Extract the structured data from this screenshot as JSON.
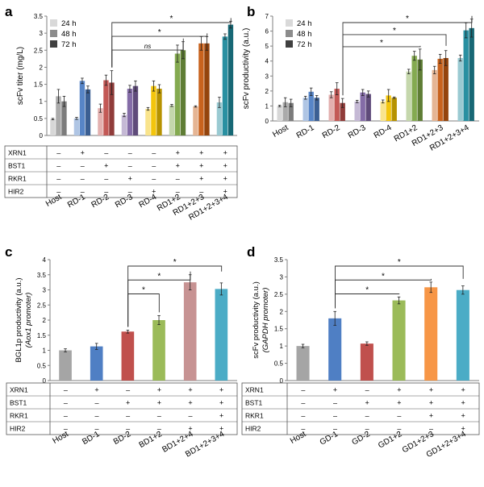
{
  "colors": {
    "host": "#a5a5a5",
    "RD-1": "#4e7fc4",
    "RD-2": "#c0504d",
    "RD-3": "#7e64a2",
    "RD-4": "#f2c200",
    "RD1+2": "#7ea647",
    "RD1+2+3": "#c55a11",
    "RD1+2+3+4": "#1e8a9c",
    "BD-1": "#4f7fc4",
    "BD-2": "#c0504d",
    "BD1+2": "#9bbb59",
    "BD1+2+4": "#c79393",
    "BD1+2+3+4": "#4bacc6",
    "GD-1": "#4f7fc4",
    "GD-2": "#c0504d",
    "GD1+2": "#9bbb59",
    "GD1+2+3": "#f79646",
    "GD1+2+3+4": "#4bacc6"
  },
  "chart_data": [
    {
      "panel": "a",
      "type": "bar",
      "ylabel": "scFv titer (mg/L)",
      "ylim": [
        0,
        3.5
      ],
      "yticks": [
        "0",
        "0.5",
        "1",
        "1.5",
        "2",
        "2.5",
        "3",
        "3.5"
      ],
      "categories": [
        "Host",
        "RD-1",
        "RD-2",
        "RD-3",
        "RD-4",
        "RD1+2",
        "RD1+2+3",
        "RD1+2+3+4"
      ],
      "legend": [
        "24 h",
        "48 h",
        "72 h"
      ],
      "legend_placement": "top-left",
      "series": [
        {
          "name": "24 h",
          "values": [
            0.48,
            0.5,
            0.8,
            0.6,
            0.78,
            0.88,
            0.85,
            0.97
          ],
          "errors": [
            0.02,
            0.03,
            0.12,
            0.05,
            0.04,
            0.03,
            0.02,
            0.15
          ]
        },
        {
          "name": "48 h",
          "values": [
            1.15,
            1.6,
            1.62,
            1.37,
            1.45,
            2.4,
            2.7,
            2.9
          ],
          "errors": [
            0.2,
            0.08,
            0.15,
            0.1,
            0.15,
            0.25,
            0.2,
            0.08
          ]
        },
        {
          "name": "72 h",
          "values": [
            1.0,
            1.35,
            1.55,
            1.45,
            1.37,
            2.5,
            2.7,
            3.25
          ],
          "errors": [
            0.15,
            0.1,
            0.35,
            0.15,
            0.12,
            0.25,
            0.2,
            0.1
          ]
        }
      ],
      "annotations": [
        {
          "label": "*",
          "from": 2,
          "to": 7
        },
        {
          "label": "*",
          "from": 2,
          "to": 6
        },
        {
          "label": "ns",
          "from": 2,
          "to": 5
        }
      ],
      "table": {
        "rows": [
          "XRN1",
          "BST1",
          "RKR1",
          "HIR2"
        ],
        "values": [
          [
            "–",
            "+",
            "–",
            "–",
            "–",
            "+",
            "+",
            "+"
          ],
          [
            "–",
            "–",
            "+",
            "–",
            "–",
            "+",
            "+",
            "+"
          ],
          [
            "–",
            "–",
            "–",
            "+",
            "–",
            "–",
            "+",
            "+"
          ],
          [
            "–",
            "–",
            "–",
            "–",
            "+",
            "–",
            "–",
            "+"
          ]
        ]
      }
    },
    {
      "panel": "b",
      "type": "bar",
      "ylabel": "scFv productivity (a.u.)",
      "ylim": [
        0,
        7
      ],
      "yticks": [
        "0",
        "1",
        "2",
        "3",
        "4",
        "5",
        "6",
        "7"
      ],
      "categories": [
        "Host",
        "RD-1",
        "RD-2",
        "RD-3",
        "RD-4",
        "RD1+2",
        "RD1+2+3",
        "RD1+2+3+4"
      ],
      "legend": [
        "24 h",
        "48 h",
        "72 h"
      ],
      "legend_placement": "top-left",
      "series": [
        {
          "name": "24 h",
          "values": [
            1.0,
            1.55,
            1.75,
            1.3,
            1.3,
            3.3,
            3.4,
            4.2
          ],
          "errors": [
            0.05,
            0.1,
            0.2,
            0.08,
            0.1,
            0.15,
            0.25,
            0.2
          ]
        },
        {
          "name": "48 h",
          "values": [
            1.25,
            1.95,
            2.15,
            1.9,
            1.7,
            4.35,
            4.15,
            6.05
          ],
          "errors": [
            0.3,
            0.25,
            0.4,
            0.2,
            0.4,
            0.3,
            0.3,
            0.5
          ]
        },
        {
          "name": "72 h",
          "values": [
            1.2,
            1.55,
            1.2,
            1.8,
            1.55,
            4.1,
            4.2,
            6.2
          ],
          "errors": [
            0.25,
            0.15,
            0.3,
            0.2,
            0.05,
            0.7,
            0.5,
            0.6
          ]
        }
      ],
      "annotations": [
        {
          "label": "*",
          "from": 2,
          "to": 7
        },
        {
          "label": "*",
          "from": 2,
          "to": 6
        },
        {
          "label": "*",
          "from": 2,
          "to": 5
        }
      ]
    },
    {
      "panel": "c",
      "type": "bar",
      "ylabel": "BGL1p productivity (a.u.)",
      "ylabel2": "(Aox1 promoter)",
      "ylim": [
        0,
        4
      ],
      "yticks": [
        "0",
        "0.5",
        "1",
        "1.5",
        "2",
        "2.5",
        "3",
        "3.5",
        "4"
      ],
      "categories": [
        "Host",
        "BD-1",
        "BD-2",
        "BD1+2",
        "BD1+2+4",
        "BD1+2+3+4"
      ],
      "series": [
        {
          "values": [
            1.0,
            1.13,
            1.62,
            2.0,
            3.25,
            3.03
          ],
          "errors": [
            0.05,
            0.1,
            0.05,
            0.15,
            0.25,
            0.2
          ]
        }
      ],
      "annotations": [
        {
          "label": "*",
          "from": 2,
          "to": 5
        },
        {
          "label": "*",
          "from": 2,
          "to": 4
        },
        {
          "label": "*",
          "from": 2,
          "to": 3
        }
      ],
      "table": {
        "rows": [
          "XRN1",
          "BST1",
          "RKR1",
          "HIR2"
        ],
        "values": [
          [
            "–",
            "+",
            "–",
            "+",
            "+",
            "+"
          ],
          [
            "–",
            "–",
            "+",
            "+",
            "+",
            "+"
          ],
          [
            "–",
            "–",
            "–",
            "–",
            "–",
            "+"
          ],
          [
            "–",
            "–",
            "–",
            "–",
            "+",
            "+"
          ]
        ]
      }
    },
    {
      "panel": "d",
      "type": "bar",
      "ylabel": "scFv productivity (a.u.)",
      "ylabel2": "(GAPDH promoter)",
      "ylim": [
        0,
        3.5
      ],
      "yticks": [
        "0",
        "0.5",
        "1",
        "1.5",
        "2",
        "2.5",
        "3",
        "3.5"
      ],
      "categories": [
        "Host",
        "GD-1",
        "GD-2",
        "GD1+2",
        "GD1+2+3",
        "GD1+2+3+4"
      ],
      "series": [
        {
          "values": [
            1.0,
            1.8,
            1.07,
            2.32,
            2.7,
            2.62
          ],
          "errors": [
            0.05,
            0.2,
            0.05,
            0.1,
            0.15,
            0.12
          ]
        }
      ],
      "annotations": [
        {
          "label": "*",
          "from": 1,
          "to": 5
        },
        {
          "label": "*",
          "from": 1,
          "to": 4
        },
        {
          "label": "*",
          "from": 1,
          "to": 3
        }
      ],
      "table": {
        "rows": [
          "XRN1",
          "BST1",
          "RKR1",
          "HIR2"
        ],
        "values": [
          [
            "–",
            "+",
            "–",
            "+",
            "+",
            "+"
          ],
          [
            "–",
            "–",
            "+",
            "+",
            "+",
            "+"
          ],
          [
            "–",
            "–",
            "–",
            "–",
            "+",
            "+"
          ],
          [
            "–",
            "–",
            "–",
            "–",
            "–",
            "+"
          ]
        ]
      }
    }
  ],
  "panel_letters": [
    "a",
    "b",
    "c",
    "d"
  ]
}
